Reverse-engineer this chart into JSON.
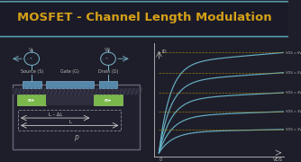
{
  "title": "MOSFET - Channel Length Modulation",
  "title_color": "#D4A017",
  "bg_color": "#1e1e2a",
  "border_color": "#5599aa",
  "curve_color": "#6ab8cc",
  "dashed_color": "#b8960a",
  "axis_color": "#aaaaaa",
  "label_color": "#bbbbbb",
  "vgs_labels": [
    "VGS = 6V",
    "VGS = 5V",
    "VGS = 4V",
    "VGS = 3V",
    "VGS = 2V"
  ],
  "vgs_saturation": [
    0.9,
    0.72,
    0.54,
    0.37,
    0.21
  ],
  "slope": 0.03,
  "gate_color": "#5588aa",
  "nplus_color": "#7ab84c",
  "oxide_color": "#3a3a4a",
  "ptype_color": "#252535",
  "wire_color": "#7ab8cc",
  "substrate_color": "#1e2030"
}
